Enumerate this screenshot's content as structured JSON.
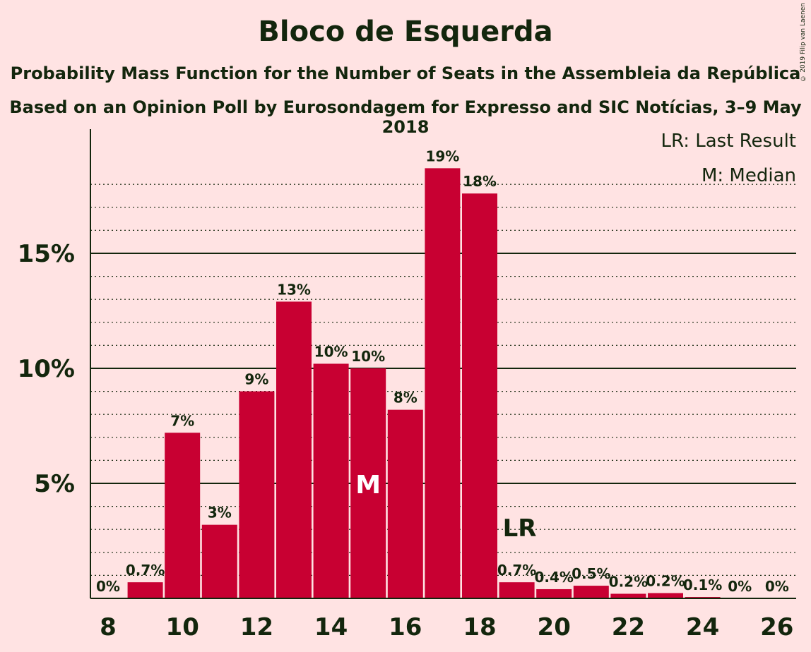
{
  "title": "Bloco de Esquerda",
  "subtitle": "Probability Mass Function for the Number of Seats in the Assembleia da República",
  "subtitle2": "Based on an Opinion Poll by Eurosondagem for Expresso and SIC Notícias, 3–9 May 2018",
  "copyright": "© 2019 Filip van Laenen",
  "legend": {
    "last_result": "LR: Last Result",
    "median": "M: Median"
  },
  "markers": {
    "median_label": "M",
    "median_x": 15,
    "last_result_label": "LR",
    "last_result_x": 19
  },
  "colors": {
    "bar": "#C80032",
    "background": "#FFE3E3",
    "text": "#13260D"
  },
  "chart_data": {
    "type": "bar",
    "x": [
      8,
      9,
      10,
      11,
      12,
      13,
      14,
      15,
      16,
      17,
      18,
      19,
      20,
      21,
      22,
      23,
      24,
      25,
      26
    ],
    "values": [
      0,
      0.7,
      7.2,
      3.2,
      9.0,
      12.9,
      10.2,
      10.0,
      8.2,
      18.7,
      17.6,
      0.7,
      0.4,
      0.55,
      0.2,
      0.23,
      0.06,
      0,
      0
    ],
    "data_labels": [
      "0%",
      "0.7%",
      "7%",
      "3%",
      "9%",
      "13%",
      "10%",
      "10%",
      "8%",
      "19%",
      "18%",
      "0.7%",
      "0.4%",
      "0.5%",
      "0.2%",
      "0.2%",
      "0.1%",
      "0%",
      "0%"
    ],
    "x_tick_labels": [
      "8",
      "10",
      "12",
      "14",
      "16",
      "18",
      "20",
      "22",
      "24",
      "26"
    ],
    "y_tick_labels": [
      "5%",
      "10%",
      "15%"
    ],
    "y_ticks": [
      5,
      10,
      15
    ],
    "ylim": [
      0,
      20.3
    ],
    "grid": true,
    "legend_placement": "top-right"
  }
}
